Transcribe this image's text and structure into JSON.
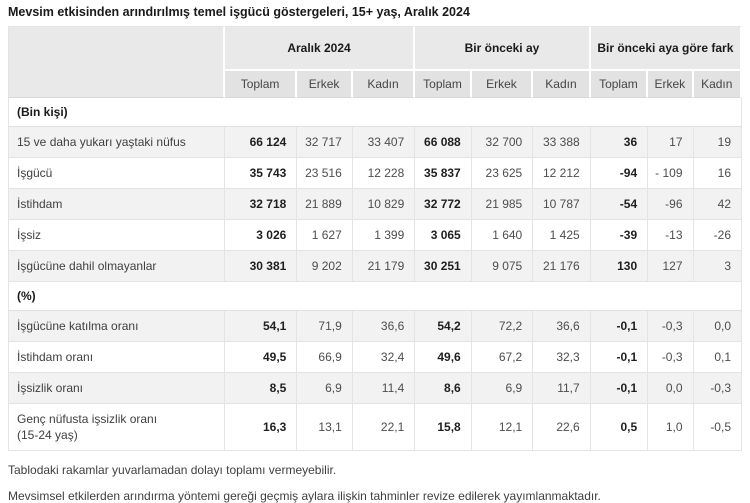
{
  "title": "Mevsim etkisinden arındırılmış temel işgücü göstergeleri, 15+ yaş, Aralık 2024",
  "colors": {
    "header_bg": "#e9e9e9",
    "subheader_bg": "#e2e2e2",
    "shaded_row_bg": "#f2f2f2",
    "border": "#e4e4e4",
    "text_dark": "#1a1a1a",
    "text_muted": "#4d4d4d"
  },
  "chart_data": {
    "type": "table",
    "title": "Mevsim etkisinden arındırılmış temel işgücü göstergeleri, 15+ yaş, Aralık 2024",
    "column_groups": [
      "Aralık 2024",
      "Bir önceki ay",
      "Bir önceki aya göre fark"
    ],
    "sub_headers": [
      "Toplam",
      "Erkek",
      "Kadın",
      "Toplam",
      "Erkek",
      "Kadın",
      "Toplam",
      "Erkek",
      "Kadın"
    ],
    "sections": [
      {
        "header": "(Bin kişi)",
        "rows": [
          {
            "label": "15 ve daha yukarı yaştaki nüfus",
            "values": [
              "66 124",
              "32 717",
              "33 407",
              "66 088",
              "32 700",
              "33 388",
              "36",
              "17",
              "19"
            ]
          },
          {
            "label": "İşgücü",
            "values": [
              "35 743",
              "23 516",
              "12 228",
              "35 837",
              "23 625",
              "12 212",
              "-94",
              "- 109",
              "16"
            ]
          },
          {
            "label": "İstihdam",
            "values": [
              "32 718",
              "21 889",
              "10 829",
              "32 772",
              "21 985",
              "10 787",
              "-54",
              "-96",
              "42"
            ]
          },
          {
            "label": "İşsiz",
            "values": [
              "3 026",
              "1 627",
              "1 399",
              "3 065",
              "1 640",
              "1 425",
              "-39",
              "-13",
              "-26"
            ]
          },
          {
            "label": "İşgücüne dahil olmayanlar",
            "values": [
              "30 381",
              "9 202",
              "21 179",
              "30 251",
              "9 075",
              "21 176",
              "130",
              "127",
              "3"
            ]
          }
        ]
      },
      {
        "header": "(%)",
        "rows": [
          {
            "label": "İşgücüne katılma oranı",
            "values": [
              "54,1",
              "71,9",
              "36,6",
              "54,2",
              "72,2",
              "36,6",
              "-0,1",
              "-0,3",
              "0,0"
            ]
          },
          {
            "label": "İstihdam oranı",
            "values": [
              "49,5",
              "66,9",
              "32,4",
              "49,6",
              "67,2",
              "32,3",
              "-0,1",
              "-0,3",
              "0,1"
            ]
          },
          {
            "label": "İşsizlik oranı",
            "values": [
              "8,5",
              "6,9",
              "11,4",
              "8,6",
              "6,9",
              "11,7",
              "-0,1",
              "0,0",
              "-0,3"
            ]
          },
          {
            "label": "Genç nüfusta işsizlik oranı\n(15-24 yaş)",
            "values": [
              "16,3",
              "13,1",
              "22,1",
              "15,8",
              "12,1",
              "22,6",
              "0,5",
              "1,0",
              "-0,5"
            ]
          }
        ]
      }
    ]
  },
  "footnotes": [
    "Tablodaki rakamlar yuvarlamadan dolayı toplamı vermeyebilir.",
    "Mevsimsel etkilerden arındırma yöntemi gereği geçmiş aylara ilişkin tahminler revize edilerek yayımlanmaktadır."
  ]
}
